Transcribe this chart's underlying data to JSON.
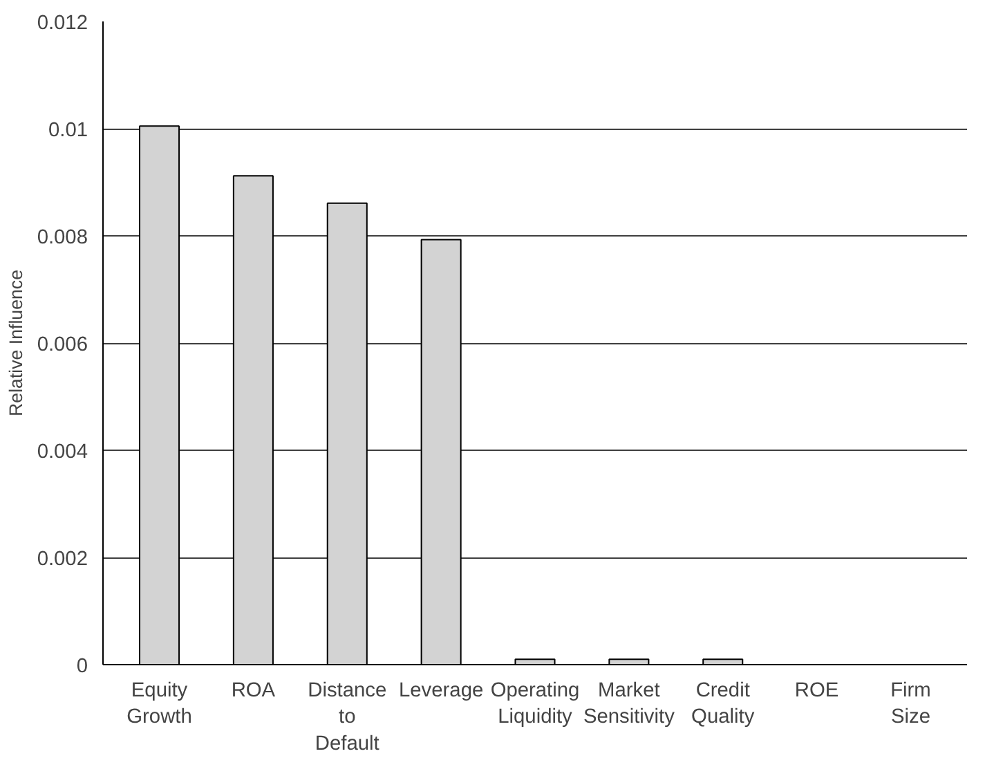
{
  "chart_data": {
    "type": "bar",
    "ylabel": "Relative Influence",
    "categories": [
      "Equity\nGrowth",
      "ROA",
      "Distance\nto\nDefault",
      "Leverage",
      "Operating\nLiquidity",
      "Market\nSensitivity",
      "Credit\nQuality",
      "ROE",
      "Firm\nSize"
    ],
    "values": [
      0.01005,
      0.00912,
      0.00861,
      0.00793,
      0.0001,
      0.0001,
      0.0001,
      null,
      null
    ],
    "color": "#d3d3d3",
    "ylim": [
      0,
      0.012
    ],
    "yticks": [
      0,
      0.002,
      0.004,
      0.006,
      0.008,
      0.01,
      0.012
    ],
    "grid": "y"
  }
}
